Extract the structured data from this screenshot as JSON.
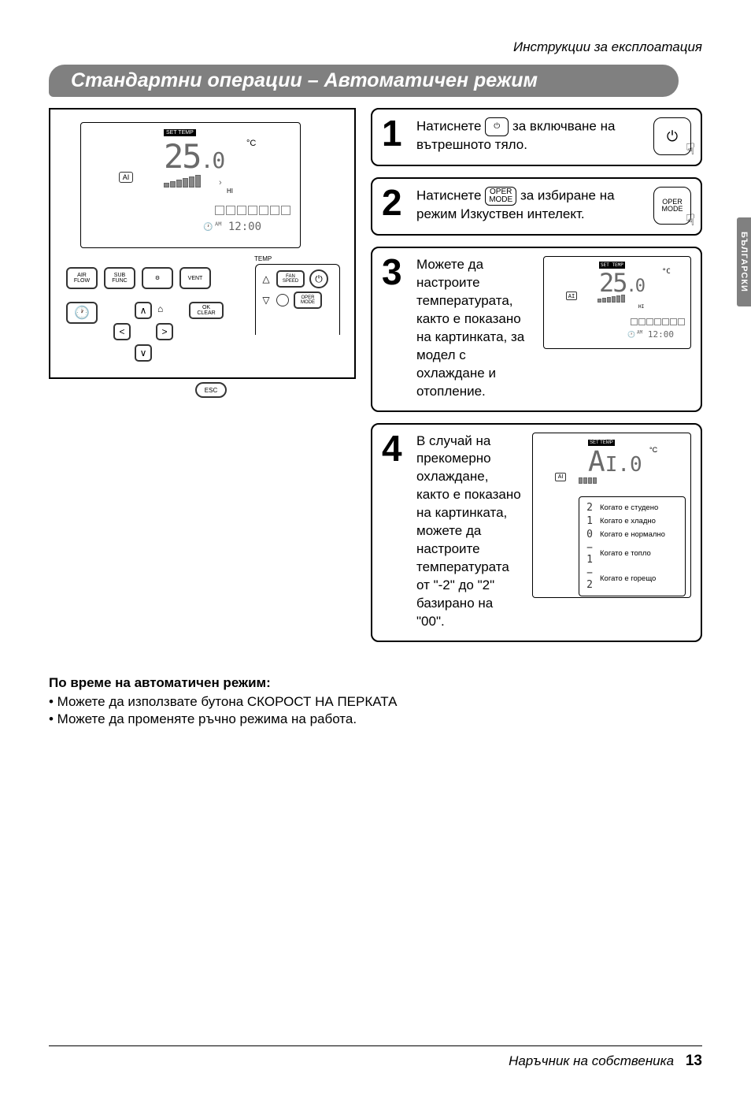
{
  "header": {
    "top_right": "Инструкции за експлоатация"
  },
  "section": {
    "title": "Стандартни операции – Автоматичен режим"
  },
  "side_tab": "БЪЛГАРСКИ",
  "remote": {
    "set_temp_label": "SET TEMP",
    "temp_value": "25",
    "temp_dec": ".0",
    "deg": "°C",
    "ai": "AI",
    "hi": "HI",
    "clock": "12:00",
    "am": "AM",
    "btn_airflow": "AIR\nFLOW",
    "btn_subfunc": "SUB\nFUNC",
    "btn_vent": "VENT",
    "fan_speed": "FAN\nSPEED",
    "oper_mode": "OPER\nMODE",
    "ok_clear": "OK\nCLEAR",
    "esc": "ESC",
    "temp_lbl": "TEMP"
  },
  "steps": {
    "s1": {
      "num": "1",
      "pre": "Натиснете ",
      "post": " за включване на вътрешното тяло."
    },
    "s2": {
      "num": "2",
      "pre": "Натиснете ",
      "btn_top": "OPER",
      "btn_bot": "MODE",
      "post": " за избиране на режим Изкуствен интелект.",
      "icon_top": "OPER",
      "icon_bot": "MODE"
    },
    "s3": {
      "num": "3",
      "text": "Можете да настроите температурата, както е показано на картинката, за модел с охлаждане и отопление.",
      "mini": {
        "set_temp": "SET TEMP",
        "val": "25",
        "dec": ".0",
        "deg": "°C",
        "ai": "AI",
        "hi": "HI",
        "clock": "12:00",
        "am": "AM"
      }
    },
    "s4": {
      "num": "4",
      "text": "В случай на прекомерно охлаждане, както е показано на картинката, можете да настроите температурата от \"-2\" до \"2\" базирано на \"00\".",
      "mini": {
        "set_temp": "SET TEMP",
        "val": "A",
        "dec": "I.0",
        "deg": "°C",
        "ai": "AI"
      },
      "legend": [
        {
          "d": "2",
          "t": "Когато е студено"
        },
        {
          "d": "1",
          "t": "Когато е хладно"
        },
        {
          "d": "0",
          "t": "Когато е нормално"
        },
        {
          "d": "− 1",
          "t": "Когато е топло"
        },
        {
          "d": "− 2",
          "t": "Когато е горещо"
        }
      ]
    }
  },
  "notes": {
    "title": "По време на автоматичен режим:",
    "b1": "• Можете да използвате бутона СКОРОСТ НА ПЕРКАТА",
    "b2": "• Можете да променяте ръчно режима на работа."
  },
  "footer": {
    "text": "Наръчник на собственика",
    "page": "13"
  },
  "colors": {
    "banner": "#808080",
    "text": "#000000",
    "bg": "#ffffff"
  }
}
